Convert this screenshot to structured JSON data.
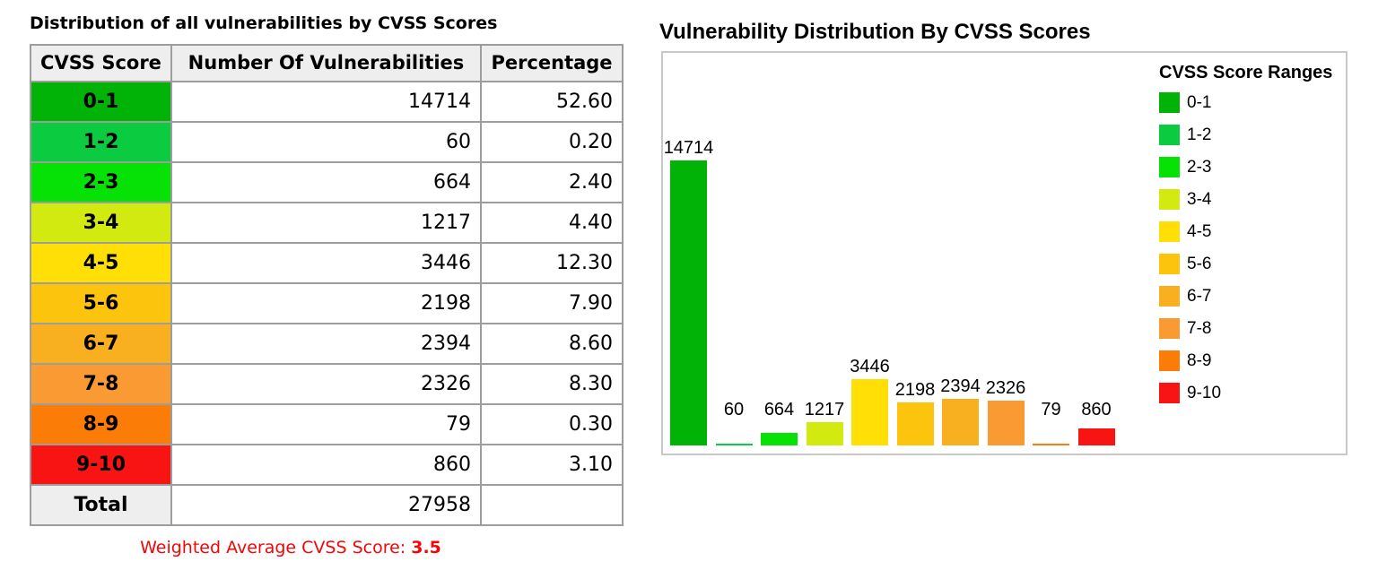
{
  "table_section": {
    "title": "Distribution of all vulnerabilities by CVSS Scores",
    "columns": [
      "CVSS Score",
      "Number Of Vulnerabilities",
      "Percentage"
    ],
    "rows": [
      {
        "range": "0-1",
        "count": "14714",
        "pct": "52.60",
        "color": "#00b306"
      },
      {
        "range": "1-2",
        "count": "60",
        "pct": "0.20",
        "color": "#0bcc40"
      },
      {
        "range": "2-3",
        "count": "664",
        "pct": "2.40",
        "color": "#06e206"
      },
      {
        "range": "3-4",
        "count": "1217",
        "pct": "4.40",
        "color": "#d3ea10"
      },
      {
        "range": "4-5",
        "count": "3446",
        "pct": "12.30",
        "color": "#ffdf06"
      },
      {
        "range": "5-6",
        "count": "2198",
        "pct": "7.90",
        "color": "#fcc40c"
      },
      {
        "range": "6-7",
        "count": "2394",
        "pct": "8.60",
        "color": "#f8b020"
      },
      {
        "range": "7-8",
        "count": "2326",
        "pct": "8.30",
        "color": "#fa9a33"
      },
      {
        "range": "8-9",
        "count": "79",
        "pct": "0.30",
        "color": "#fb7d08"
      },
      {
        "range": "9-10",
        "count": "860",
        "pct": "3.10",
        "color": "#f91414"
      }
    ],
    "total_label": "Total",
    "total_count": "27958",
    "total_pct": "",
    "footer_prefix": "Weighted Average CVSS Score:",
    "footer_value": "3.5",
    "footer_color": "#f60505",
    "header_bg": "#eeeeee"
  },
  "chart_data": {
    "type": "bar",
    "title": "Vulnerability Distribution By CVSS Scores",
    "categories": [
      "0-1",
      "1-2",
      "2-3",
      "3-4",
      "4-5",
      "5-6",
      "6-7",
      "7-8",
      "8-9",
      "9-10"
    ],
    "values": [
      14714,
      60,
      664,
      1217,
      3446,
      2198,
      2394,
      2326,
      79,
      860
    ],
    "colors": [
      "#00b306",
      "#0bcc40",
      "#06e206",
      "#d3ea10",
      "#ffdf06",
      "#fcc40c",
      "#f8b020",
      "#fa9a33",
      "#fb7d08",
      "#f91414"
    ],
    "bar_labels": true,
    "xlabel": "",
    "ylabel": "",
    "ylim": [
      0,
      14714
    ],
    "grid": false,
    "axes_shown": false,
    "legend_title": "CVSS Score Ranges",
    "legend_position": "right"
  }
}
